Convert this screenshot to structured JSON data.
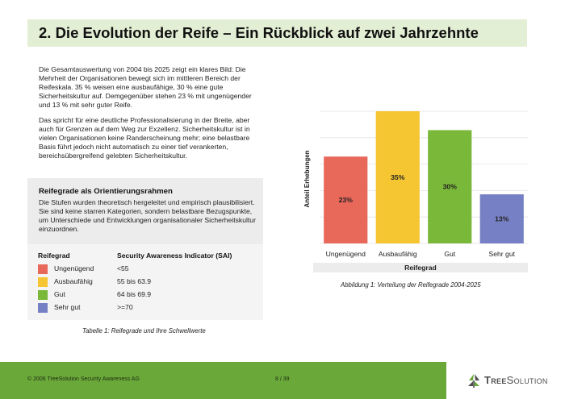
{
  "title": "2.  Die Evolution der Reife – Ein Rückblick auf zwei Jahrzehnte",
  "paragraphs": [
    "Die Gesamtauswertung von 2004 bis 2025 zeigt ein klares Bild: Die Mehrheit der Organisationen bewegt sich im mittleren Bereich der Reifeskala. 35 % weisen eine ausbaufähige, 30 % eine gute Sicherheitskultur auf. Demgegenüber stehen 23 % mit ungenügender und 13 % mit sehr guter Reife.",
    "Das spricht für eine deutliche Professionalisierung in der Breite, aber auch für Grenzen auf dem Weg zur Exzellenz. Sicherheitskultur ist in vielen Organisationen keine Randerscheinung mehr; eine belastbare Basis führt jedoch nicht automatisch zu einer tief verankerten, bereichsübergreifend gelebten Sicherheitskultur."
  ],
  "reifegrade_box": {
    "heading": "Reifegrade als Orientierungsrahmen",
    "text": "Die Stufen wurden theoretisch hergeleitet und empirisch plausibilisiert. Sie sind keine starren Kategorien, sondern belastbare Bezugspunkte, um Unterschiede und Entwicklungen organisationaler Sicherheitskultur einzuordnen."
  },
  "legend_table": {
    "col1_header": "Reifegrad",
    "col2_header": "Security Awareness Indicator (SAI)",
    "rows": [
      {
        "label": "Ungenügend",
        "value": "<55",
        "color": "#e8685a"
      },
      {
        "label": "Ausbaufähig",
        "value": "55 bis 63.9",
        "color": "#f5c532"
      },
      {
        "label": "Gut",
        "value": "64 bis 69.9",
        "color": "#7ab83a"
      },
      {
        "label": "Sehr gut",
        "value": ">=70",
        "color": "#7680c4"
      }
    ]
  },
  "table_caption": "Tabelle 1: Reifegrade und Ihre Schwellwerte",
  "chart_caption": "Abbildung 1: Verteilung der Reifegrade 2004-2025",
  "chart_data": {
    "type": "bar",
    "categories": [
      "Ungenügend",
      "Ausbaufähig",
      "Gut",
      "Sehr gut"
    ],
    "values": [
      23,
      35,
      30,
      13
    ],
    "value_labels": [
      "23%",
      "35%",
      "30%",
      "13%"
    ],
    "colors": [
      "#e8685a",
      "#f5c532",
      "#7ab83a",
      "#7680c4"
    ],
    "xlabel": "Reifegrad",
    "ylabel": "Anteil Erhebungen",
    "ylim": [
      0,
      35
    ],
    "grid": true,
    "y_ticks_shown": false
  },
  "footer": {
    "copyright": "© 2006 TreeSolution Security Awareness AG",
    "page": "8 / 39"
  },
  "logo": {
    "name_bold": "Tree",
    "name_regular": "Solution",
    "icon": "tree-logo-icon"
  }
}
